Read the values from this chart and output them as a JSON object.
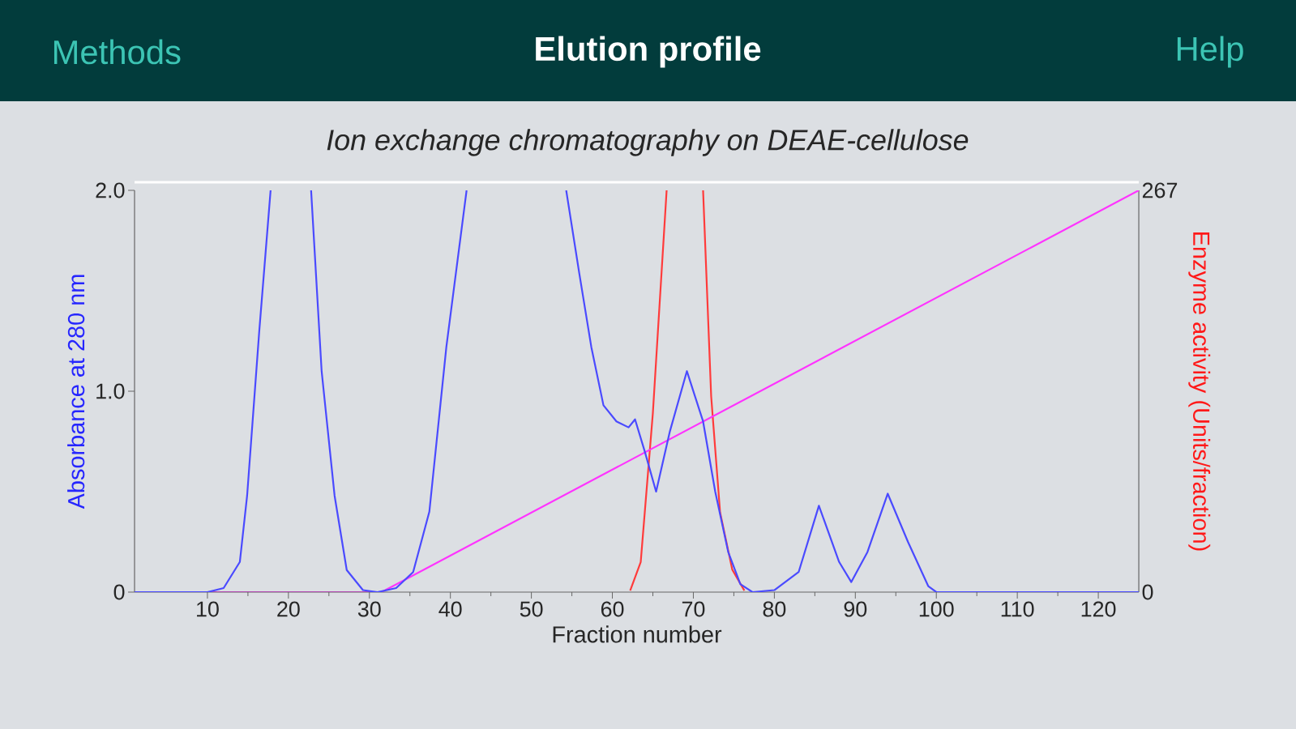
{
  "chart_data": {
    "type": "line",
    "title": "Elution profile",
    "subtitle": "Ion exchange chromatography on DEAE-cellulose",
    "annotations": [
      "Methods",
      "Help"
    ],
    "xlabel": "Fraction number",
    "ylabel": "Absorbance at 280 nm",
    "y2label": "Enzyme activity (Units/fraction)",
    "xlim": [
      1,
      125
    ],
    "xticks": [
      10,
      20,
      30,
      40,
      50,
      60,
      70,
      80,
      90,
      100,
      110,
      120
    ],
    "ylim": [
      0,
      2
    ],
    "yticks": [
      0,
      {
        "value": 1,
        "label": "1.0"
      },
      {
        "value": 2,
        "label": "2.0"
      }
    ],
    "y2lim": [
      0,
      267
    ],
    "y2ticks": [
      0,
      267
    ],
    "series": [
      {
        "color": "#4a4aff",
        "x": [
          1,
          10,
          12,
          14,
          14.9,
          16.4,
          17.8,
          20,
          22.8,
          24.1,
          25.7,
          27.2,
          29.2,
          31,
          33.3,
          35.4,
          37.4,
          39.5,
          42,
          48,
          54.3,
          55.9,
          57.4,
          58.9,
          60.5,
          62,
          62.8,
          64,
          65.4,
          67.1,
          69.2,
          71.2,
          72.7,
          74.3,
          75.8,
          77.3,
          80,
          83,
          85.5,
          88,
          89.5,
          91.5,
          94,
          96.5,
          99,
          100,
          125
        ],
        "values": [
          0,
          0,
          0.02,
          0.15,
          0.48,
          1.3,
          2.0,
          null,
          2.0,
          1.1,
          0.48,
          0.11,
          0.01,
          0,
          0.02,
          0.1,
          0.4,
          1.22,
          2.0,
          null,
          2.0,
          1.59,
          1.22,
          0.93,
          0.85,
          0.82,
          0.86,
          0.7,
          0.5,
          0.8,
          1.1,
          0.85,
          0.5,
          0.2,
          0.04,
          0,
          0.01,
          0.1,
          0.43,
          0.15,
          0.05,
          0.2,
          0.49,
          0.25,
          0.03,
          0,
          0
        ]
      },
      {
        "color": "#ff3b3b",
        "axis": "y2",
        "x": [
          62.2,
          63.5,
          65,
          66.7,
          69,
          71.2,
          72.2,
          73.3,
          74.8,
          76.3
        ],
        "values": [
          1,
          20,
          119,
          267,
          null,
          267,
          130,
          53,
          15,
          1
        ]
      },
      {
        "color": "#ff33ff",
        "axis": "y2",
        "x": [
          1,
          31.5,
          125
        ],
        "values": [
          0,
          0,
          267
        ]
      }
    ]
  }
}
